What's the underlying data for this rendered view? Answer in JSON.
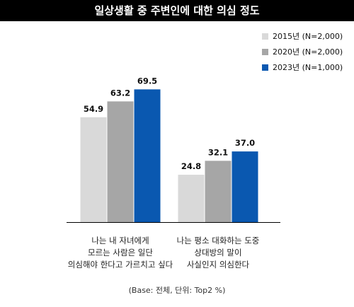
{
  "header": {
    "title": "일상생활 중 주변인에 대한 의심 정도"
  },
  "footnote": "(Base: 전체, 단위: Top2 %)",
  "chart_data": {
    "type": "bar",
    "title": "일상생활 중 주변인에 대한 의심 정도",
    "categories": [
      [
        "나는 내 자녀에게",
        "모르는 사람은 일단",
        "의심해야 한다고 가르치고 싶다"
      ],
      [
        "나는 평소 대화하는 도중",
        "상대방의 말이",
        "사실인지 의심한다"
      ]
    ],
    "series": [
      {
        "name": "2015년 (N=2,000)",
        "values": [
          54.9,
          24.8
        ],
        "labels": [
          "54.9",
          "24.8"
        ],
        "color": "#d9d9d9"
      },
      {
        "name": "2020년 (N=2,000)",
        "values": [
          63.2,
          32.1
        ],
        "labels": [
          "63.2",
          "32.1"
        ],
        "color": "#a6a6a6"
      },
      {
        "name": "2023년 (N=1,000)",
        "values": [
          69.5,
          37.0
        ],
        "labels": [
          "69.5",
          "37.0"
        ],
        "color": "#0a58b0"
      }
    ],
    "ylim": [
      0,
      100
    ],
    "grid": false,
    "legend_position": "top-right",
    "baseline_color": "#000000"
  }
}
